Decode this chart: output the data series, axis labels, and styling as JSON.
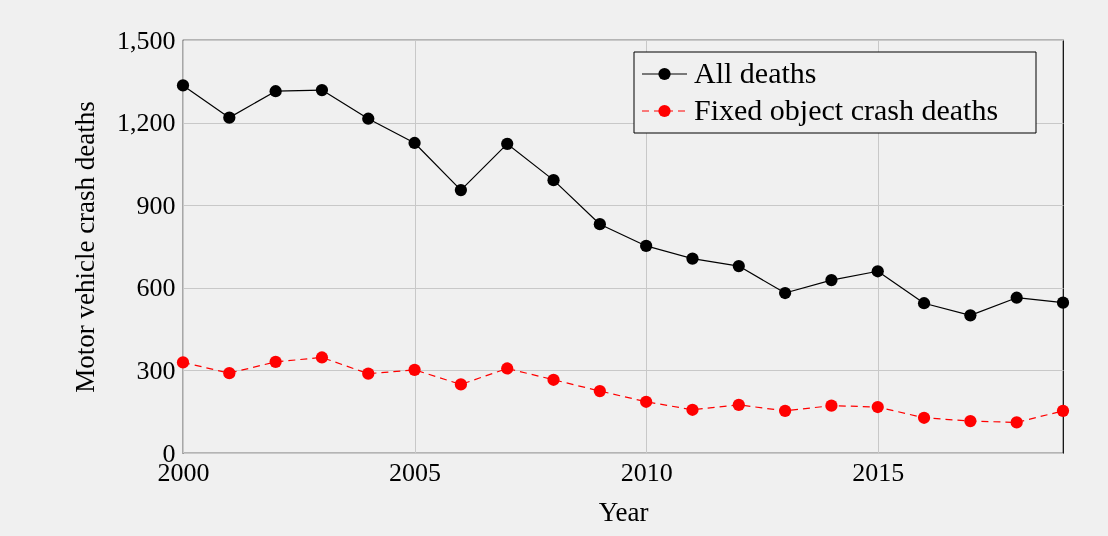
{
  "chart_data": {
    "type": "line",
    "xlabel": "Year",
    "ylabel": "Motor vehicle crash deaths",
    "x": [
      2000,
      2001,
      2002,
      2003,
      2004,
      2005,
      2006,
      2007,
      2008,
      2009,
      2010,
      2011,
      2012,
      2013,
      2014,
      2015,
      2016,
      2017,
      2018,
      2019
    ],
    "xlim": [
      2000,
      2019
    ],
    "xticks": [
      2000,
      2005,
      2010,
      2015
    ],
    "ylim": [
      0,
      1500
    ],
    "yticks": [
      0,
      300,
      600,
      900,
      {
        "value": 1200,
        "label": "1,200"
      },
      {
        "value": 1500,
        "label": "1,500"
      }
    ],
    "grid": true,
    "legend": "top right",
    "marker": "circle",
    "series": [
      {
        "name": "All deaths",
        "color": "#000000",
        "line_style": "solid",
        "values": [
          1335,
          1218,
          1314,
          1318,
          1214,
          1126,
          955,
          1123,
          991,
          831,
          752,
          706,
          679,
          581,
          628,
          660,
          544,
          500,
          564,
          546
        ]
      },
      {
        "name": "Fixed object crash deaths",
        "color": "#ff0000",
        "line_style": "dashed",
        "values": [
          329,
          290,
          331,
          347,
          288,
          302,
          249,
          307,
          266,
          225,
          186,
          157,
          175,
          153,
          172,
          167,
          128,
          116,
          111,
          153
        ]
      }
    ]
  }
}
